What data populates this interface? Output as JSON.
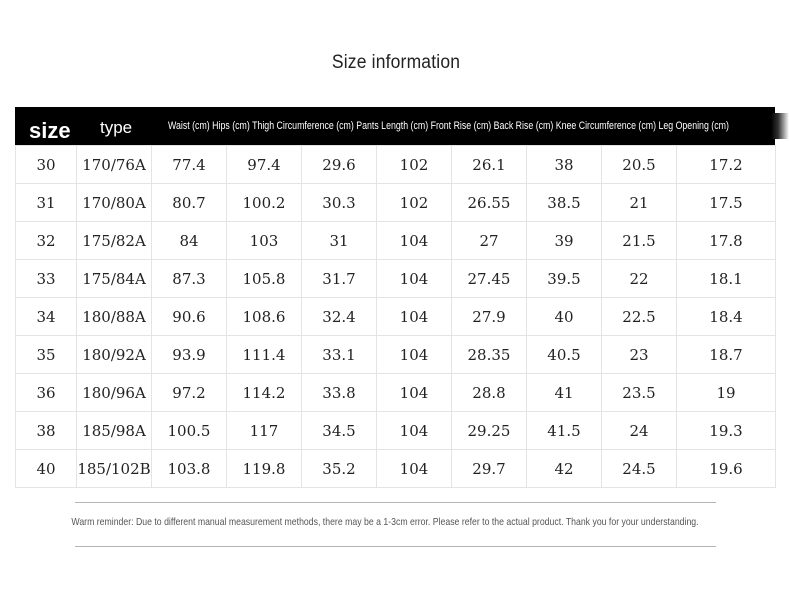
{
  "title": "Size information",
  "header": {
    "size_label": "size",
    "type_label": "type",
    "measurements_label": "Waist (cm) Hips (cm) Thigh Circumference (cm) Pants Length (cm) Front Rise (cm) Back Rise (cm) Knee Circumference (cm) Leg Opening (cm)"
  },
  "rows": [
    [
      "30",
      "170/76A",
      "77.4",
      "97.4",
      "29.6",
      "102",
      "26.1",
      "38",
      "20.5",
      "17.2"
    ],
    [
      "31",
      "170/80A",
      "80.7",
      "100.2",
      "30.3",
      "102",
      "26.55",
      "38.5",
      "21",
      "17.5"
    ],
    [
      "32",
      "175/82A",
      "84",
      "103",
      "31",
      "104",
      "27",
      "39",
      "21.5",
      "17.8"
    ],
    [
      "33",
      "175/84A",
      "87.3",
      "105.8",
      "31.7",
      "104",
      "27.45",
      "39.5",
      "22",
      "18.1"
    ],
    [
      "34",
      "180/88A",
      "90.6",
      "108.6",
      "32.4",
      "104",
      "27.9",
      "40",
      "22.5",
      "18.4"
    ],
    [
      "35",
      "180/92A",
      "93.9",
      "111.4",
      "33.1",
      "104",
      "28.35",
      "40.5",
      "23",
      "18.7"
    ],
    [
      "36",
      "180/96A",
      "97.2",
      "114.2",
      "33.8",
      "104",
      "28.8",
      "41",
      "23.5",
      "19"
    ],
    [
      "38",
      "185/98A",
      "100.5",
      "117",
      "34.5",
      "104",
      "29.25",
      "41.5",
      "24",
      "19.3"
    ],
    [
      "40",
      "185/102B",
      "103.8",
      "119.8",
      "35.2",
      "104",
      "29.7",
      "42",
      "24.5",
      "19.6"
    ]
  ],
  "reminder": "Warm reminder: Due to different manual measurement methods, there may be a 1-3cm error. Please refer to the actual product. Thank you for your understanding."
}
